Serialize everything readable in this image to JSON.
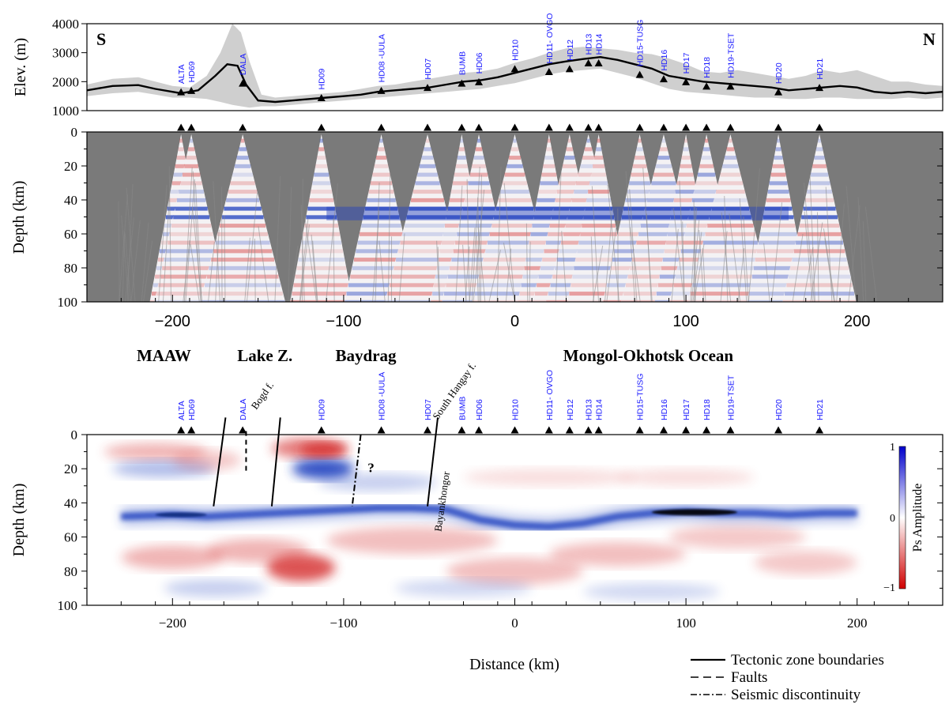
{
  "chart_data": [
    {
      "type": "area",
      "panel": "elevation",
      "ylabel": "Elev. (m)",
      "ylim": [
        1000,
        4000
      ],
      "yticks": [
        "1000",
        "2000",
        "3000",
        "4000"
      ],
      "xlim": [
        -250,
        250
      ],
      "corner_left": "S",
      "corner_right": "N",
      "profile": {
        "x": [
          -250,
          -235,
          -220,
          -210,
          -200,
          -195,
          -185,
          -175,
          -168,
          -162,
          -157,
          -150,
          -140,
          -130,
          -120,
          -110,
          -100,
          -90,
          -80,
          -70,
          -60,
          -50,
          -40,
          -30,
          -20,
          -10,
          0,
          10,
          20,
          30,
          40,
          50,
          60,
          70,
          80,
          90,
          100,
          110,
          120,
          130,
          140,
          150,
          160,
          170,
          180,
          190,
          200,
          210,
          220,
          230,
          240,
          250
        ],
        "y": [
          1700,
          1850,
          1880,
          1750,
          1650,
          1600,
          1700,
          2200,
          2600,
          2550,
          1900,
          1350,
          1300,
          1350,
          1400,
          1450,
          1500,
          1550,
          1650,
          1700,
          1750,
          1800,
          1900,
          2000,
          2050,
          2150,
          2300,
          2450,
          2600,
          2700,
          2780,
          2850,
          2750,
          2600,
          2450,
          2200,
          2100,
          2000,
          1950,
          1900,
          1850,
          1800,
          1700,
          1750,
          1800,
          1850,
          1800,
          1650,
          1600,
          1650,
          1600,
          1650
        ]
      },
      "envelope": {
        "x": [
          -250,
          -235,
          -220,
          -210,
          -200,
          -190,
          -180,
          -172,
          -165,
          -160,
          -155,
          -148,
          -140,
          -130,
          -120,
          -110,
          -100,
          -90,
          -80,
          -70,
          -60,
          -50,
          -40,
          -30,
          -20,
          -10,
          0,
          10,
          20,
          30,
          40,
          50,
          60,
          70,
          80,
          90,
          100,
          110,
          120,
          130,
          140,
          150,
          160,
          170,
          180,
          190,
          200,
          210,
          220,
          230,
          240,
          250
        ],
        "upper": [
          1900,
          2100,
          2150,
          2000,
          1850,
          1800,
          2200,
          3000,
          4000,
          3700,
          2700,
          1550,
          1450,
          1500,
          1550,
          1600,
          1650,
          1750,
          1850,
          1900,
          2000,
          2100,
          2200,
          2300,
          2350,
          2450,
          2650,
          2800,
          3000,
          3150,
          3200,
          3150,
          3100,
          3000,
          2950,
          2800,
          2600,
          2350,
          2300,
          2400,
          2300,
          2200,
          2100,
          2200,
          2400,
          2300,
          2400,
          2200,
          2000,
          2000,
          1900,
          1850
        ],
        "lower": [
          1500,
          1600,
          1650,
          1550,
          1450,
          1450,
          1400,
          1300,
          1200,
          1150,
          1100,
          1150,
          1150,
          1200,
          1250,
          1300,
          1350,
          1400,
          1450,
          1500,
          1550,
          1600,
          1650,
          1700,
          1750,
          1850,
          1950,
          2100,
          2250,
          2350,
          2400,
          2450,
          2300,
          2150,
          1950,
          1750,
          1650,
          1600,
          1550,
          1500,
          1450,
          1450,
          1400,
          1400,
          1450,
          1450,
          1400,
          1400,
          1400,
          1450,
          1400,
          1450
        ]
      }
    },
    {
      "type": "heatmap",
      "panel": "ccp-single",
      "ylabel": "Depth (km)",
      "ylim": [
        100,
        0
      ],
      "yticks": [
        "0",
        "20",
        "40",
        "60",
        "80",
        "100"
      ],
      "xlim": [
        -250,
        250
      ],
      "xticks": [
        "−200",
        "−100",
        "0",
        "100",
        "200"
      ]
    },
    {
      "type": "heatmap",
      "panel": "ccp-stacked",
      "ylabel": "Depth (km)",
      "xlabel": "Distance (km)",
      "ylim": [
        100,
        0
      ],
      "yticks": [
        "0",
        "20",
        "40",
        "60",
        "80",
        "100"
      ],
      "xlim": [
        -250,
        250
      ],
      "xticks": [
        "−200",
        "−100",
        "0",
        "100",
        "200"
      ],
      "colorbar": {
        "label": "Ps Amplitude",
        "ticks": [
          "1",
          "0",
          "−1"
        ],
        "max_color": "#0000cc",
        "min_color": "#d00000"
      },
      "moho": {
        "x": [
          -230,
          -200,
          -180,
          -160,
          -120,
          -100,
          -80,
          -60,
          -40,
          -20,
          0,
          20,
          40,
          60,
          80,
          100,
          120,
          140,
          160,
          180,
          200
        ],
        "depth": [
          48,
          47,
          48,
          47,
          45,
          44,
          43,
          43,
          44,
          50,
          53,
          54,
          52,
          48,
          46,
          45,
          46,
          46,
          47,
          46,
          46
        ]
      }
    }
  ],
  "stations": [
    {
      "name": "ALTA",
      "x": -195,
      "elev": 1650
    },
    {
      "name": "HD69",
      "x": -189,
      "elev": 1700
    },
    {
      "name": "DALA",
      "x": -159,
      "elev": 1950
    },
    {
      "name": "HD09",
      "x": -113,
      "elev": 1450
    },
    {
      "name": "HD08 -UULA",
      "x": -78,
      "elev": 1700
    },
    {
      "name": "HD07",
      "x": -51,
      "elev": 1800
    },
    {
      "name": "BUMB",
      "x": -31,
      "elev": 1950
    },
    {
      "name": "HD06",
      "x": -21,
      "elev": 2000
    },
    {
      "name": "HD10",
      "x": 0,
      "elev": 2450
    },
    {
      "name": "HD11- OVGO",
      "x": 20,
      "elev": 2350
    },
    {
      "name": "HD12",
      "x": 32,
      "elev": 2450
    },
    {
      "name": "HD13",
      "x": 43,
      "elev": 2650
    },
    {
      "name": "HD14",
      "x": 49,
      "elev": 2650
    },
    {
      "name": "HD15-TUSG",
      "x": 73,
      "elev": 2250
    },
    {
      "name": "HD16",
      "x": 87,
      "elev": 2100
    },
    {
      "name": "HD17",
      "x": 100,
      "elev": 2000
    },
    {
      "name": "HD18",
      "x": 112,
      "elev": 1850
    },
    {
      "name": "HD19-TSET",
      "x": 126,
      "elev": 1850
    },
    {
      "name": "HD20",
      "x": 154,
      "elev": 1650
    },
    {
      "name": "HD21",
      "x": 178,
      "elev": 1800
    }
  ],
  "region_labels": [
    {
      "text": "MAAW",
      "x": -205
    },
    {
      "text": "Lake Z.",
      "x": -146
    },
    {
      "text": "Baydrag",
      "x": -87
    },
    {
      "text": "Mongol-Okhotsk Ocean",
      "x": 78
    }
  ],
  "annotations": {
    "bogd": "Bogd f.",
    "south_hangay": "South Hangay f.",
    "bayankhongor": "Bayankhongor",
    "question": "?"
  },
  "legend": {
    "items": [
      {
        "label": "Tectonic zone boundaries",
        "style": "solid"
      },
      {
        "label": "Faults",
        "style": "dashed"
      },
      {
        "label": "Seismic discontinuity",
        "style": "dashdot"
      }
    ]
  },
  "colors": {
    "station_label": "#1a1aff",
    "blue": "#1f3fbf",
    "red": "#d42a2a",
    "gray_bg": "#7a7a7a",
    "envelope": "#cfcfcf"
  }
}
